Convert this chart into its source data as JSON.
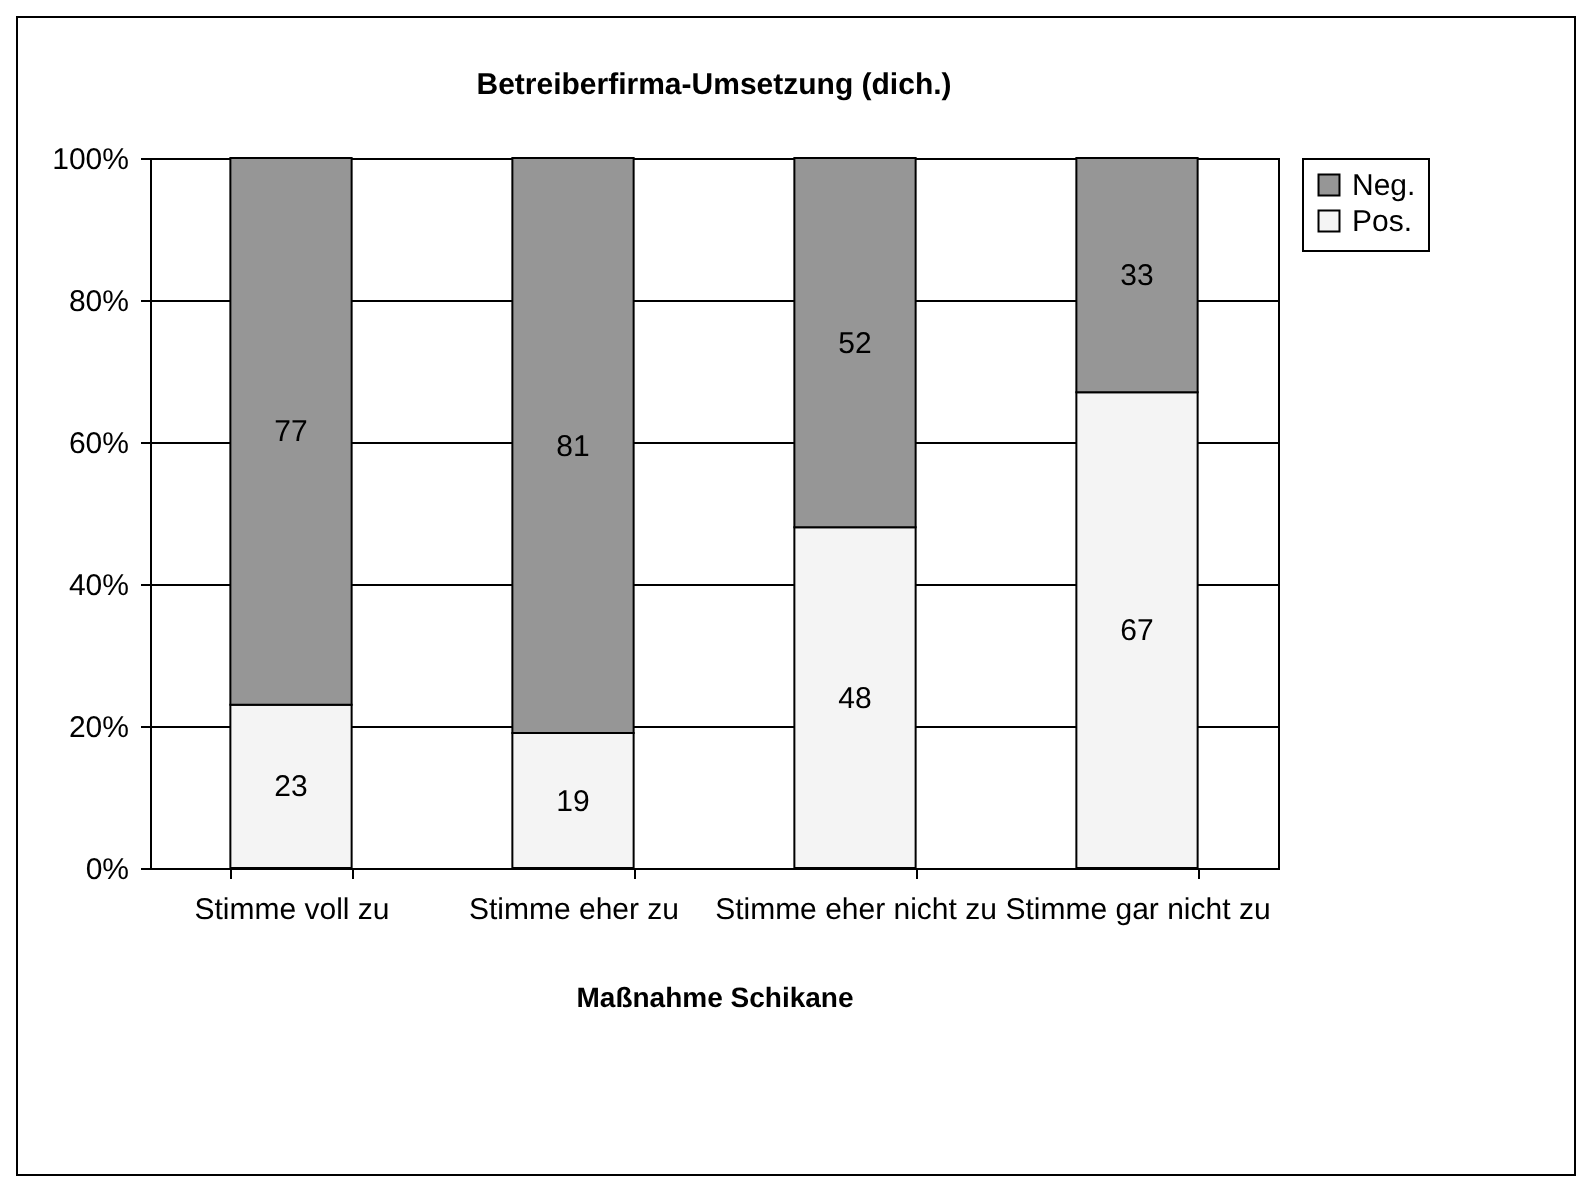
{
  "chart_data": {
    "type": "bar",
    "title": "Betreiberfirma-Umsetzung (dich.)",
    "xlabel": "Maßnahme Schikane",
    "categories": [
      "Stimme voll zu",
      "Stimme eher zu",
      "Stimme eher nicht zu",
      "Stimme gar nicht zu"
    ],
    "stacked": true,
    "data_labels": true,
    "grid": "y",
    "legend": "right",
    "ylim": [
      0,
      100
    ],
    "yticks": [
      {
        "value": 0,
        "label": "0%"
      },
      {
        "value": 20,
        "label": "20%"
      },
      {
        "value": 40,
        "label": "40%"
      },
      {
        "value": 60,
        "label": "60%"
      },
      {
        "value": 80,
        "label": "80%"
      },
      {
        "value": 100,
        "label": "100%"
      }
    ],
    "series": [
      {
        "name": "Pos.",
        "color": "#f4f4f4",
        "values": [
          23,
          19,
          48,
          67
        ]
      },
      {
        "name": "Neg.",
        "color": "#969696",
        "values": [
          77,
          81,
          52,
          33
        ]
      }
    ]
  }
}
